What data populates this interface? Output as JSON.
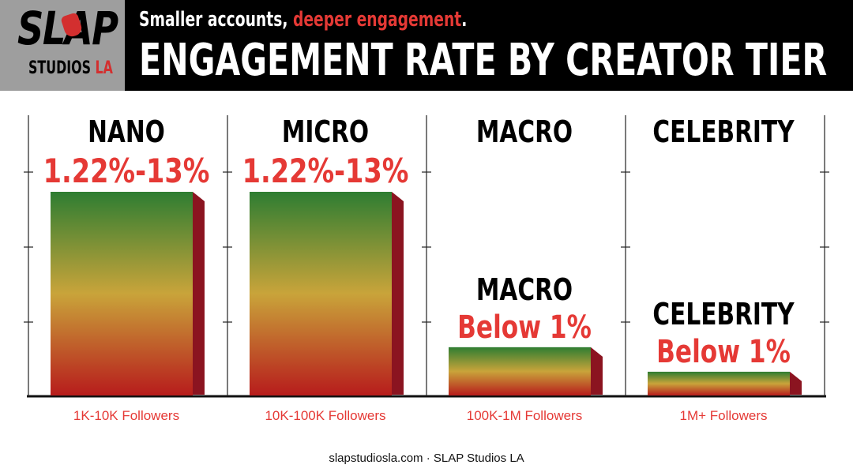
{
  "header": {
    "subtitle_lead": "Smaller accounts, ",
    "subtitle_highlight": "deeper engagement",
    "subtitle_end": ".",
    "title": "ENGAGEMENT RATE BY CREATOR TIER"
  },
  "logo": {
    "word": "SLAP",
    "studios": "STUDIOS ",
    "la": "LA"
  },
  "colors": {
    "accent_red": "#e53935",
    "gradient_top": "#2e7d32",
    "gradient_mid": "#c9a43a",
    "gradient_bottom": "#b71c1c",
    "bar_side": "#8b1420"
  },
  "chart_data": {
    "type": "bar",
    "title": "ENGAGEMENT RATE BY CREATOR TIER",
    "categories": [
      "NANO",
      "MICRO",
      "MACRO",
      "CELEBRITY"
    ],
    "x_tick_labels": [
      "1K-10K Followers",
      "10K-100K Followers",
      "100K-1M Followers",
      "1M+ Followers"
    ],
    "data_labels": [
      "1.22%-13%",
      "1.22%-13%",
      "Below 1%",
      "Below 1%"
    ],
    "relative_values": [
      1.0,
      1.0,
      0.24,
      0.12
    ],
    "grid": false
  },
  "footer": {
    "text": "slapstudiosla.com · SLAP Studios LA"
  }
}
